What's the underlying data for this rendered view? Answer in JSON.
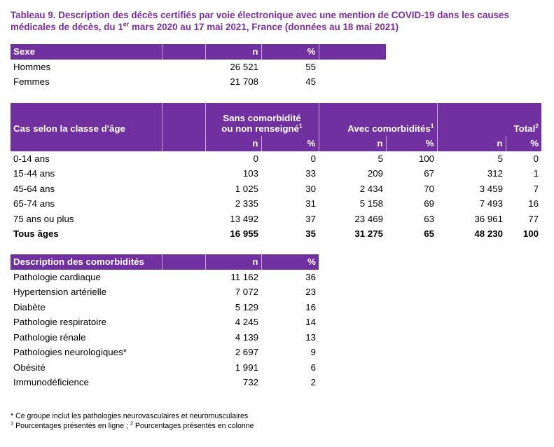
{
  "title": {
    "line1": "Tableau 9. Description des décès certifiés par voie électronique avec une mention de COVID-19 dans les causes",
    "line2_a": "médicales de décès, du 1",
    "line2_sup": "er",
    "line2_b": " mars 2020 au 17 mai 2021, France (données au 18 mai 2021)"
  },
  "colors": {
    "header_bg": "#7030a0",
    "title": "#7a2e9c"
  },
  "sexe": {
    "header": {
      "label": "Sexe",
      "n": "n",
      "pct": "%"
    },
    "rows": [
      {
        "label": "Hommes",
        "n": "26 521",
        "pct": "55"
      },
      {
        "label": "Femmes",
        "n": "21 708",
        "pct": "45"
      }
    ]
  },
  "age": {
    "header": {
      "label": "Cas selon la classe d'âge",
      "sans_line1": "Sans comorbidité",
      "sans_line2": "ou non renseigné",
      "sans_sup": "1",
      "avec": "Avec comorbidités",
      "avec_sup": "1",
      "total": "Total",
      "total_sup": "2",
      "n": "n",
      "pct": "%"
    },
    "rows": [
      {
        "label": "0-14 ans",
        "sans_n": "0",
        "sans_pct": "0",
        "avec_n": "5",
        "avec_pct": "100",
        "tot_n": "5",
        "tot_pct": "0"
      },
      {
        "label": "15-44 ans",
        "sans_n": "103",
        "sans_pct": "33",
        "avec_n": "209",
        "avec_pct": "67",
        "tot_n": "312",
        "tot_pct": "1"
      },
      {
        "label": "45-64 ans",
        "sans_n": "1 025",
        "sans_pct": "30",
        "avec_n": "2 434",
        "avec_pct": "70",
        "tot_n": "3 459",
        "tot_pct": "7"
      },
      {
        "label": "65-74 ans",
        "sans_n": "2 335",
        "sans_pct": "31",
        "avec_n": "5 158",
        "avec_pct": "69",
        "tot_n": "7 493",
        "tot_pct": "16"
      },
      {
        "label": "75 ans ou plus",
        "sans_n": "13 492",
        "sans_pct": "37",
        "avec_n": "23 469",
        "avec_pct": "63",
        "tot_n": "36 961",
        "tot_pct": "77"
      }
    ],
    "total_row": {
      "label": "Tous âges",
      "sans_n": "16 955",
      "sans_pct": "35",
      "avec_n": "31 275",
      "avec_pct": "65",
      "tot_n": "48 230",
      "tot_pct": "100"
    }
  },
  "comorb": {
    "header": {
      "label": "Description des comorbidités",
      "n": "n",
      "pct": "%"
    },
    "rows": [
      {
        "label": "Pathologie cardiaque",
        "n": "11 162",
        "pct": "36"
      },
      {
        "label": "Hypertension artérielle",
        "n": "7 072",
        "pct": "23"
      },
      {
        "label": "Diabète",
        "n": "5 129",
        "pct": "16"
      },
      {
        "label": "Pathologie respiratoire",
        "n": "4 245",
        "pct": "14"
      },
      {
        "label": "Pathologie rénale",
        "n": "4 139",
        "pct": "13"
      },
      {
        "label": "Pathologies neurologiques*",
        "n": "2 697",
        "pct": "9"
      },
      {
        "label": "Obésité",
        "n": "1 991",
        "pct": "6"
      },
      {
        "label": "Immunodéficience",
        "n": "732",
        "pct": "2"
      }
    ]
  },
  "notes": {
    "line1": "* Ce groupe inclut les pathologies neurovasculaires et neuromusculaires",
    "line2_sup1": "1",
    "line2_a": " Pourcentages présentés en ligne ; ",
    "line2_sup2": "2",
    "line2_b": " Pourcentages présentés en colonne"
  }
}
